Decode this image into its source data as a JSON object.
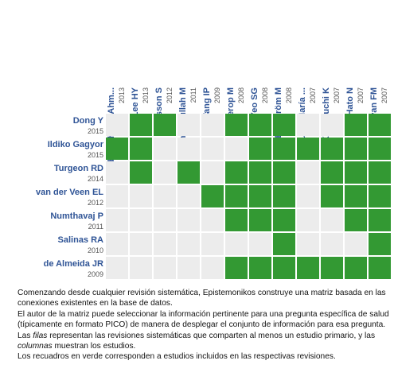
{
  "columns": [
    {
      "name": "Abdelghany, Ahm...",
      "year": "2013"
    },
    {
      "name": "Lee HY",
      "year": "2013"
    },
    {
      "name": "Axelsson S",
      "year": "2012"
    },
    {
      "name": "Shahidullah M",
      "year": "2011"
    },
    {
      "name": "Tang IP",
      "year": "2009"
    },
    {
      "name": "Minnerop M",
      "year": "2008"
    },
    {
      "name": "Yeo SG",
      "year": "2008"
    },
    {
      "name": "Engström M",
      "year": "2008"
    },
    {
      "name": "Vázquez, María ...",
      "year": "2007"
    },
    {
      "name": "Kawaguchi K",
      "year": "2007"
    },
    {
      "name": "Hato N",
      "year": "2007"
    },
    {
      "name": "Sullivan FM",
      "year": "2007"
    }
  ],
  "rows": [
    {
      "name": "Dong Y",
      "year": "2015",
      "cells": [
        false,
        true,
        true,
        false,
        false,
        true,
        true,
        true,
        false,
        false,
        true,
        true
      ]
    },
    {
      "name": "Ildiko Gagyor",
      "year": "2015",
      "cells": [
        true,
        true,
        false,
        false,
        false,
        false,
        true,
        true,
        true,
        true,
        true,
        true
      ]
    },
    {
      "name": "Turgeon RD",
      "year": "2014",
      "cells": [
        false,
        true,
        false,
        true,
        false,
        true,
        true,
        true,
        false,
        true,
        true,
        true
      ]
    },
    {
      "name": "van der Veen EL",
      "year": "2012",
      "cells": [
        false,
        false,
        false,
        false,
        true,
        true,
        true,
        true,
        false,
        true,
        true,
        true
      ]
    },
    {
      "name": "Numthavaj P",
      "year": "2011",
      "cells": [
        false,
        false,
        false,
        false,
        false,
        true,
        true,
        true,
        false,
        false,
        true,
        true
      ]
    },
    {
      "name": "Salinas RA",
      "year": "2010",
      "cells": [
        false,
        false,
        false,
        false,
        false,
        false,
        false,
        true,
        false,
        false,
        false,
        true
      ]
    },
    {
      "name": "de Almeida JR",
      "year": "2009",
      "cells": [
        false,
        false,
        false,
        false,
        false,
        true,
        true,
        true,
        true,
        true,
        true,
        true
      ]
    }
  ],
  "description": [
    [
      {
        "text": "Comenzando desde cualquier revisión sistemática, Epistemonikos construye una matriz basada en las conexiones existentes en la base de datos."
      }
    ],
    [
      {
        "text": "El autor de la matriz puede seleccionar la información pertinente para una pregunta específica de salud (típicamente en formato PICO) de manera de desplegar el conjunto de información para esa pregunta."
      }
    ],
    [
      {
        "text": "Las "
      },
      {
        "text": "filas",
        "italic": true
      },
      {
        "text": " representan las revisiones sistemáticas que comparten al menos un estudio primario, y las "
      },
      {
        "text": "columnas",
        "italic": true
      },
      {
        "text": " muestran los estudios."
      }
    ],
    [
      {
        "text": "Los recuadros en verde corresponden a estudios incluidos en las respectivas revisiones."
      }
    ]
  ]
}
